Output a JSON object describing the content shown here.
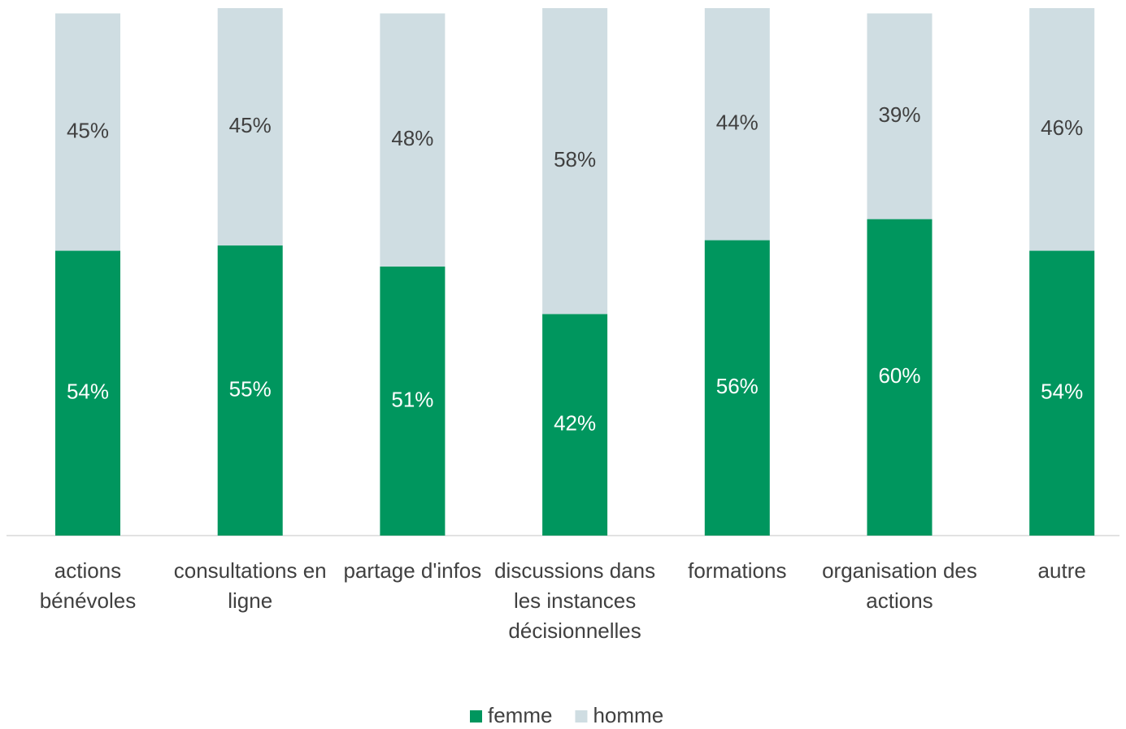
{
  "chart_data": {
    "type": "stacked_bar",
    "categories": [
      "actions bénévoles",
      "consultations en ligne",
      "partage d'infos",
      "discussions dans les instances décisionnelles",
      "formations",
      "organisation des actions",
      "autre"
    ],
    "series": [
      {
        "name": "femme",
        "color": "#00965e",
        "values": [
          54,
          55,
          51,
          42,
          56,
          60,
          54
        ],
        "value_labels": [
          "54%",
          "55%",
          "51%",
          "42%",
          "56%",
          "60%",
          "54%"
        ]
      },
      {
        "name": "homme",
        "color": "#cfdde2",
        "values": [
          45,
          45,
          48,
          58,
          44,
          39,
          46
        ],
        "value_labels": [
          "45%",
          "45%",
          "48%",
          "58%",
          "44%",
          "39%",
          "46%"
        ]
      }
    ],
    "ylim": [
      0,
      100
    ],
    "legend": "bottom"
  }
}
